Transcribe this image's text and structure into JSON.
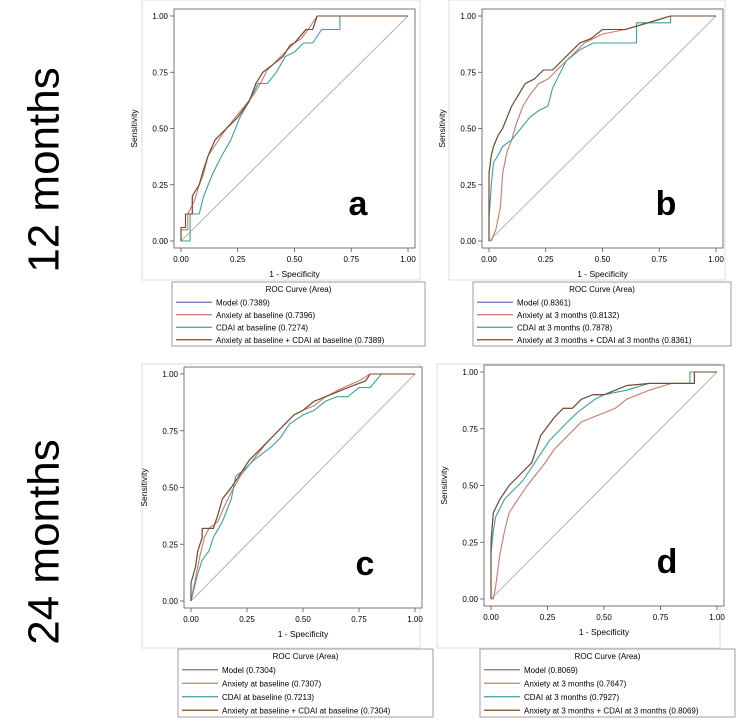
{
  "row_labels": [
    "12 months",
    "24 months"
  ],
  "colors": {
    "model": "#6e73b4",
    "anxiety": "#d0786a",
    "cdai": "#3aa3a0",
    "combined": "#7a4a28",
    "diagonal": "#b4b4b4"
  },
  "chart_data": [
    {
      "type": "line",
      "panel_letter": "a",
      "xlabel": "1 - Specificity",
      "ylabel": "Sensitivity",
      "xlim": [
        0,
        1
      ],
      "ylim": [
        0,
        1
      ],
      "xticks": [
        "0.00",
        "0.25",
        "0.50",
        "0.75",
        "1.00"
      ],
      "yticks": [
        "0.00",
        "0.25",
        "0.50",
        "0.75",
        "1.00"
      ],
      "legend_title": "ROC Curve (Area)",
      "series": [
        {
          "name": "Model",
          "label": "Model  (0.7389)",
          "color_key": "model",
          "x": [
            0,
            0,
            0.02,
            0.02,
            0.05,
            0.05,
            0.08,
            0.1,
            0.12,
            0.15,
            0.2,
            0.25,
            0.3,
            0.33,
            0.36,
            0.4,
            0.45,
            0.48,
            0.5,
            0.55,
            0.58,
            0.6,
            1
          ],
          "y": [
            0,
            0.06,
            0.06,
            0.12,
            0.12,
            0.2,
            0.25,
            0.32,
            0.38,
            0.45,
            0.5,
            0.55,
            0.62,
            0.7,
            0.75,
            0.78,
            0.82,
            0.87,
            0.88,
            0.94,
            0.94,
            1,
            1
          ]
        },
        {
          "name": "Anxiety at baseline",
          "label": "Anxiety at baseline  (0.7396)",
          "color_key": "anxiety",
          "x": [
            0,
            0,
            0.03,
            0.03,
            0.06,
            0.08,
            0.1,
            0.12,
            0.16,
            0.2,
            0.24,
            0.28,
            0.32,
            0.35,
            0.38,
            0.42,
            0.46,
            0.5,
            0.53,
            0.56,
            0.6,
            1
          ],
          "y": [
            0,
            0.05,
            0.05,
            0.12,
            0.18,
            0.25,
            0.3,
            0.38,
            0.44,
            0.5,
            0.55,
            0.6,
            0.65,
            0.7,
            0.76,
            0.8,
            0.84,
            0.88,
            0.9,
            0.94,
            1,
            1
          ]
        },
        {
          "name": "CDAI at baseline",
          "label": "CDAI at baseline  (0.7274)",
          "color_key": "cdai",
          "x": [
            0,
            0.04,
            0.04,
            0.08,
            0.1,
            0.14,
            0.18,
            0.22,
            0.26,
            0.3,
            0.34,
            0.38,
            0.42,
            0.46,
            0.5,
            0.54,
            0.58,
            0.62,
            0.7,
            0.7,
            1
          ],
          "y": [
            0,
            0,
            0.12,
            0.12,
            0.2,
            0.3,
            0.38,
            0.45,
            0.55,
            0.62,
            0.7,
            0.7,
            0.75,
            0.82,
            0.84,
            0.88,
            0.88,
            0.94,
            0.94,
            1,
            1
          ]
        },
        {
          "name": "Anxiety at baseline + CDAI at baseline",
          "label": "Anxiety at baseline + CDAI at baseline  (0.7389)",
          "color_key": "combined",
          "x": [
            0,
            0,
            0.02,
            0.02,
            0.05,
            0.05,
            0.08,
            0.1,
            0.12,
            0.15,
            0.2,
            0.25,
            0.3,
            0.33,
            0.36,
            0.4,
            0.45,
            0.48,
            0.5,
            0.55,
            0.58,
            0.6,
            1
          ],
          "y": [
            0,
            0.06,
            0.06,
            0.12,
            0.12,
            0.2,
            0.25,
            0.32,
            0.38,
            0.45,
            0.5,
            0.55,
            0.62,
            0.7,
            0.75,
            0.78,
            0.82,
            0.87,
            0.88,
            0.94,
            0.94,
            1,
            1
          ]
        }
      ]
    },
    {
      "type": "line",
      "panel_letter": "b",
      "xlabel": "1 - Specificity",
      "ylabel": "Sensitivity",
      "xlim": [
        0,
        1
      ],
      "ylim": [
        0,
        1
      ],
      "xticks": [
        "0.00",
        "0.25",
        "0.50",
        "0.75",
        "1.00"
      ],
      "yticks": [
        "0.00",
        "0.25",
        "0.50",
        "0.75",
        "1.00"
      ],
      "legend_title": "ROC Curve (Area)",
      "series": [
        {
          "name": "Model",
          "label": "Model  (0.8361)",
          "color_key": "model",
          "x": [
            0,
            0,
            0.01,
            0.02,
            0.04,
            0.06,
            0.08,
            0.1,
            0.13,
            0.16,
            0.2,
            0.24,
            0.28,
            0.32,
            0.36,
            0.4,
            0.45,
            0.5,
            0.6,
            0.7,
            0.8,
            1
          ],
          "y": [
            0,
            0.3,
            0.38,
            0.42,
            0.47,
            0.5,
            0.55,
            0.6,
            0.65,
            0.7,
            0.72,
            0.76,
            0.76,
            0.8,
            0.84,
            0.88,
            0.9,
            0.94,
            0.94,
            0.97,
            1,
            1
          ]
        },
        {
          "name": "Anxiety at 3 months",
          "label": "Anxiety at 3 months  (0.8132)",
          "color_key": "anxiety",
          "x": [
            0,
            0.01,
            0.03,
            0.05,
            0.06,
            0.08,
            0.1,
            0.12,
            0.15,
            0.18,
            0.22,
            0.26,
            0.3,
            0.34,
            0.38,
            0.42,
            0.46,
            0.5,
            0.6,
            0.7,
            0.8,
            1
          ],
          "y": [
            0,
            0,
            0.05,
            0.15,
            0.3,
            0.4,
            0.45,
            0.52,
            0.6,
            0.65,
            0.7,
            0.72,
            0.76,
            0.8,
            0.84,
            0.88,
            0.9,
            0.92,
            0.94,
            0.97,
            1,
            1
          ]
        },
        {
          "name": "CDAI at 3 months",
          "label": "CDAI at 3 months  (0.7878)",
          "color_key": "cdai",
          "x": [
            0,
            0,
            0.01,
            0.02,
            0.04,
            0.06,
            0.1,
            0.14,
            0.18,
            0.22,
            0.26,
            0.28,
            0.3,
            0.34,
            0.4,
            0.46,
            0.5,
            0.6,
            0.65,
            0.65,
            0.8,
            0.8,
            1
          ],
          "y": [
            0,
            0.1,
            0.25,
            0.35,
            0.38,
            0.42,
            0.45,
            0.5,
            0.55,
            0.58,
            0.6,
            0.68,
            0.72,
            0.8,
            0.85,
            0.88,
            0.88,
            0.88,
            0.88,
            0.97,
            0.97,
            1,
            1
          ]
        },
        {
          "name": "Anxiety at 3 months + CDAI at 3 months",
          "label": "Anxiety at 3 months + CDAI at 3 months  (0.8361)",
          "color_key": "combined",
          "x": [
            0,
            0,
            0.01,
            0.02,
            0.04,
            0.06,
            0.08,
            0.1,
            0.13,
            0.16,
            0.2,
            0.24,
            0.28,
            0.32,
            0.36,
            0.4,
            0.45,
            0.5,
            0.6,
            0.7,
            0.8,
            1
          ],
          "y": [
            0,
            0.3,
            0.38,
            0.42,
            0.47,
            0.5,
            0.55,
            0.6,
            0.65,
            0.7,
            0.72,
            0.76,
            0.76,
            0.8,
            0.84,
            0.88,
            0.9,
            0.94,
            0.94,
            0.97,
            1,
            1
          ]
        }
      ]
    },
    {
      "type": "line",
      "panel_letter": "c",
      "xlabel": "1 - Specificity",
      "ylabel": "Sensitivity",
      "xlim": [
        0,
        1
      ],
      "ylim": [
        0,
        1
      ],
      "xticks": [
        "0.00",
        "0.25",
        "0.50",
        "0.75",
        "1.00"
      ],
      "yticks": [
        "0.00",
        "0.25",
        "0.50",
        "0.75",
        "1.00"
      ],
      "legend_title": "ROC Curve (Area)",
      "series": [
        {
          "name": "Model",
          "label": "Model  (0.7304)",
          "color_key": "model",
          "x": [
            0,
            0,
            0.02,
            0.03,
            0.05,
            0.05,
            0.1,
            0.12,
            0.14,
            0.18,
            0.22,
            0.26,
            0.3,
            0.34,
            0.38,
            0.42,
            0.46,
            0.5,
            0.55,
            0.6,
            0.7,
            0.78,
            0.8,
            1
          ],
          "y": [
            0,
            0.08,
            0.15,
            0.22,
            0.28,
            0.32,
            0.32,
            0.38,
            0.45,
            0.5,
            0.56,
            0.62,
            0.66,
            0.7,
            0.74,
            0.78,
            0.82,
            0.84,
            0.88,
            0.9,
            0.94,
            0.97,
            1,
            1
          ]
        },
        {
          "name": "Anxiety at baseline",
          "label": "Anxiety at baseline  (0.7307)",
          "color_key": "anxiety",
          "x": [
            0,
            0.01,
            0.02,
            0.04,
            0.06,
            0.08,
            0.12,
            0.15,
            0.18,
            0.22,
            0.26,
            0.3,
            0.34,
            0.38,
            0.42,
            0.46,
            0.5,
            0.55,
            0.6,
            0.68,
            0.75,
            0.8,
            1
          ],
          "y": [
            0,
            0.05,
            0.1,
            0.2,
            0.28,
            0.32,
            0.35,
            0.42,
            0.48,
            0.55,
            0.6,
            0.65,
            0.7,
            0.74,
            0.78,
            0.82,
            0.84,
            0.86,
            0.9,
            0.94,
            0.97,
            1,
            1
          ]
        },
        {
          "name": "CDAI at baseline",
          "label": "CDAI at baseline  (0.7213)",
          "color_key": "cdai",
          "x": [
            0,
            0.02,
            0.03,
            0.05,
            0.08,
            0.1,
            0.14,
            0.18,
            0.2,
            0.24,
            0.28,
            0.32,
            0.36,
            0.4,
            0.44,
            0.5,
            0.55,
            0.6,
            0.65,
            0.7,
            0.75,
            0.8,
            0.85,
            1
          ],
          "y": [
            0,
            0.08,
            0.12,
            0.18,
            0.22,
            0.28,
            0.35,
            0.45,
            0.55,
            0.58,
            0.62,
            0.65,
            0.68,
            0.72,
            0.78,
            0.82,
            0.84,
            0.88,
            0.9,
            0.9,
            0.94,
            0.94,
            1,
            1
          ]
        },
        {
          "name": "Anxiety at baseline + CDAI at baseline",
          "label": "Anxiety at baseline + CDAI at baseline  (0.7304)",
          "color_key": "combined",
          "x": [
            0,
            0,
            0.02,
            0.03,
            0.05,
            0.05,
            0.1,
            0.12,
            0.14,
            0.18,
            0.22,
            0.26,
            0.3,
            0.34,
            0.38,
            0.42,
            0.46,
            0.5,
            0.55,
            0.6,
            0.7,
            0.78,
            0.8,
            1
          ],
          "y": [
            0,
            0.08,
            0.15,
            0.22,
            0.28,
            0.32,
            0.32,
            0.38,
            0.45,
            0.5,
            0.56,
            0.62,
            0.66,
            0.7,
            0.74,
            0.78,
            0.82,
            0.84,
            0.88,
            0.9,
            0.94,
            0.97,
            1,
            1
          ]
        }
      ]
    },
    {
      "type": "line",
      "panel_letter": "d",
      "xlabel": "1 - Specificity",
      "ylabel": "Sensitivity",
      "xlim": [
        0,
        1
      ],
      "ylim": [
        0,
        1
      ],
      "xticks": [
        "0.00",
        "0.25",
        "0.50",
        "0.75",
        "1.00"
      ],
      "yticks": [
        "0.00",
        "0.25",
        "0.50",
        "0.75",
        "1.00"
      ],
      "legend_title": "ROC Curve (Area)",
      "series": [
        {
          "name": "Model",
          "label": "Model  (0.8069)",
          "color_key": "model",
          "x": [
            0,
            0,
            0.01,
            0.02,
            0.04,
            0.06,
            0.08,
            0.1,
            0.14,
            0.18,
            0.2,
            0.22,
            0.25,
            0.28,
            0.32,
            0.36,
            0.4,
            0.45,
            0.5,
            0.6,
            0.7,
            0.8,
            0.9,
            0.9,
            1
          ],
          "y": [
            0,
            0.25,
            0.38,
            0.4,
            0.44,
            0.47,
            0.5,
            0.52,
            0.56,
            0.6,
            0.66,
            0.72,
            0.76,
            0.8,
            0.84,
            0.84,
            0.88,
            0.9,
            0.9,
            0.94,
            0.95,
            0.95,
            0.95,
            1,
            1
          ]
        },
        {
          "name": "Anxiety at 3 months",
          "label": "Anxiety at 3 months  (0.7647)",
          "color_key": "anxiety",
          "x": [
            0,
            0.01,
            0.02,
            0.04,
            0.06,
            0.08,
            0.12,
            0.16,
            0.2,
            0.24,
            0.28,
            0.32,
            0.36,
            0.4,
            0.45,
            0.5,
            0.55,
            0.6,
            0.7,
            0.8,
            0.9,
            0.9,
            1
          ],
          "y": [
            0,
            0,
            0.05,
            0.2,
            0.3,
            0.38,
            0.44,
            0.5,
            0.55,
            0.6,
            0.66,
            0.7,
            0.74,
            0.78,
            0.8,
            0.82,
            0.84,
            0.88,
            0.92,
            0.95,
            0.95,
            1,
            1
          ]
        },
        {
          "name": "CDAI at 3 months",
          "label": "CDAI at 3 months  (0.7927)",
          "color_key": "cdai",
          "x": [
            0,
            0,
            0.01,
            0.02,
            0.04,
            0.06,
            0.1,
            0.14,
            0.18,
            0.22,
            0.26,
            0.3,
            0.34,
            0.38,
            0.42,
            0.46,
            0.5,
            0.6,
            0.7,
            0.8,
            0.88,
            0.88,
            1
          ],
          "y": [
            0,
            0.2,
            0.3,
            0.36,
            0.4,
            0.44,
            0.48,
            0.52,
            0.58,
            0.64,
            0.7,
            0.74,
            0.78,
            0.82,
            0.85,
            0.88,
            0.9,
            0.92,
            0.95,
            0.95,
            0.95,
            1,
            1
          ]
        },
        {
          "name": "Anxiety at 3 months + CDAI at 3 months",
          "label": "Anxiety at 3 months + CDAI at 3 months  (0.8069)",
          "color_key": "combined",
          "x": [
            0,
            0,
            0.01,
            0.02,
            0.04,
            0.06,
            0.08,
            0.1,
            0.14,
            0.18,
            0.2,
            0.22,
            0.25,
            0.28,
            0.32,
            0.36,
            0.4,
            0.45,
            0.5,
            0.6,
            0.7,
            0.8,
            0.9,
            0.9,
            1
          ],
          "y": [
            0,
            0.25,
            0.38,
            0.4,
            0.44,
            0.47,
            0.5,
            0.52,
            0.56,
            0.6,
            0.66,
            0.72,
            0.76,
            0.8,
            0.84,
            0.84,
            0.88,
            0.9,
            0.9,
            0.94,
            0.95,
            0.95,
            0.95,
            1,
            1
          ]
        }
      ]
    }
  ]
}
